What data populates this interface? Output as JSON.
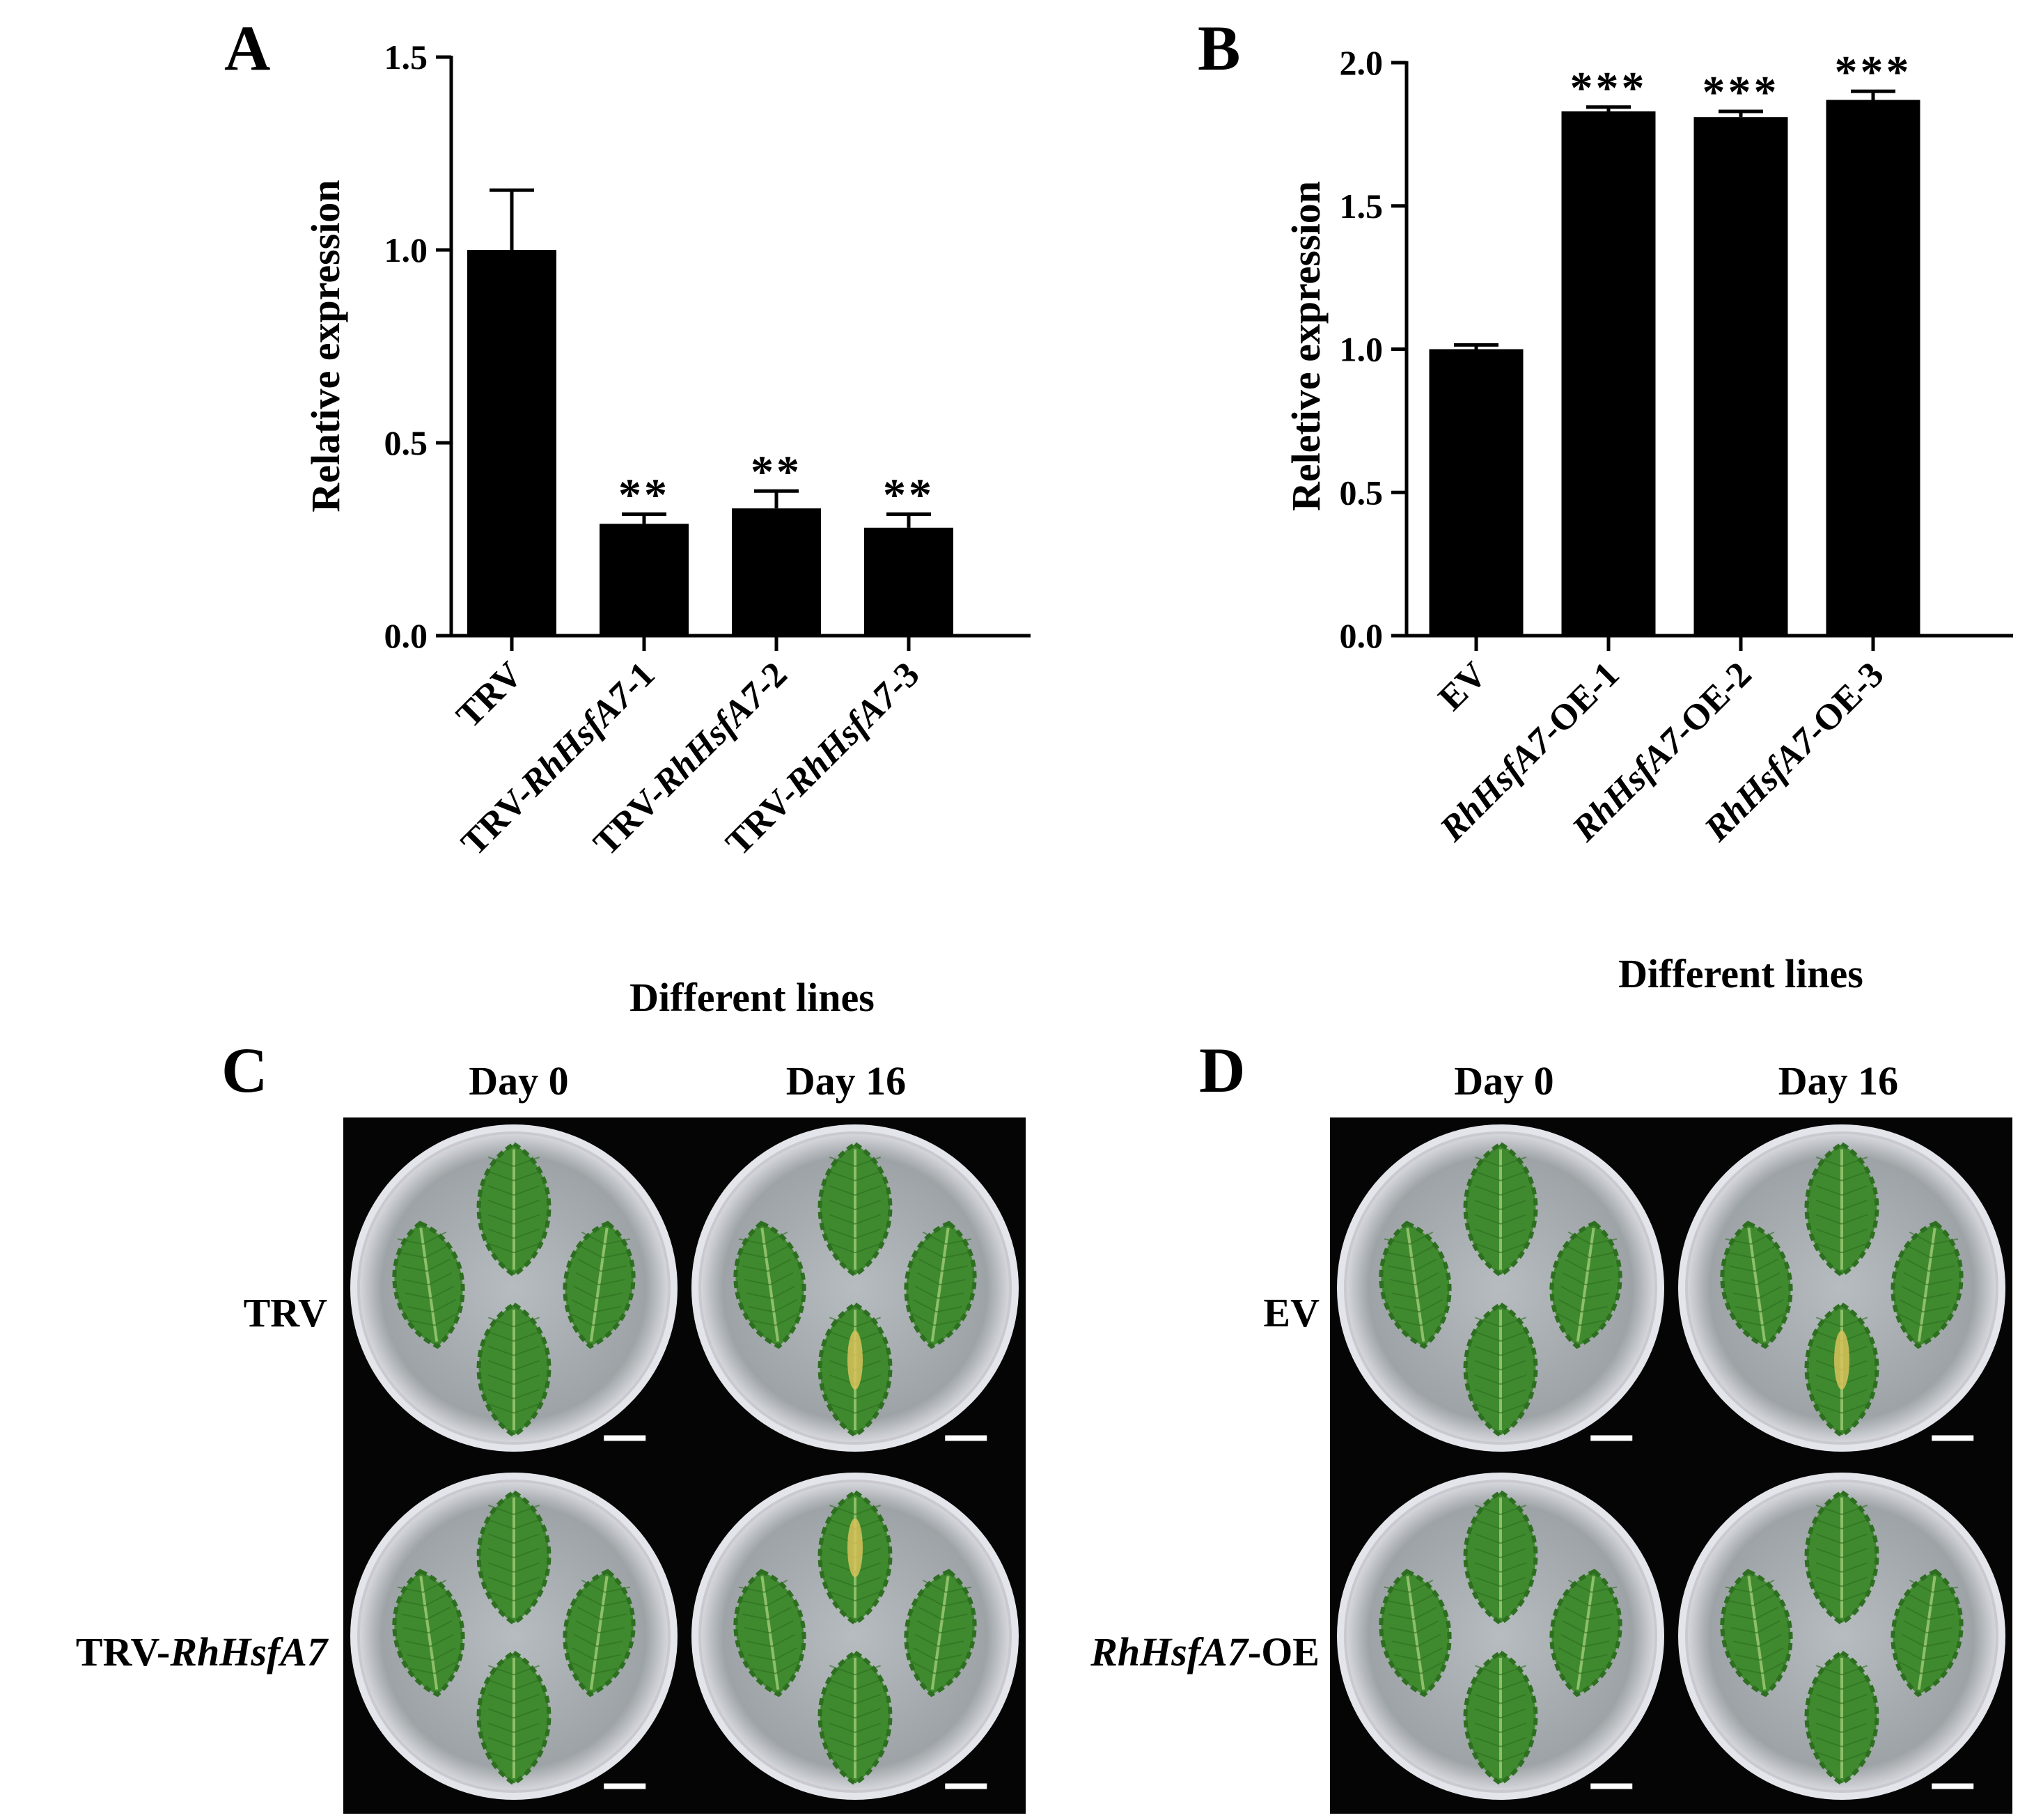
{
  "chart_data": [
    {
      "panel": "A",
      "type": "bar",
      "categories": [
        "TRV",
        "TRV-RhHsfA7-1",
        "TRV-RhHsfA7-2",
        "TRV-RhHsfA7-3"
      ],
      "categories_rich": [
        [
          {
            "t": "TRV",
            "i": false
          }
        ],
        [
          {
            "t": "TRV-",
            "i": false
          },
          {
            "t": "RhHsfA7",
            "i": true
          },
          {
            "t": "-1",
            "i": false
          }
        ],
        [
          {
            "t": "TRV-",
            "i": false
          },
          {
            "t": "RhHsfA7",
            "i": true
          },
          {
            "t": "-2",
            "i": false
          }
        ],
        [
          {
            "t": "TRV-",
            "i": false
          },
          {
            "t": "RhHsfA7",
            "i": true
          },
          {
            "t": "-3",
            "i": false
          }
        ]
      ],
      "values": [
        1.0,
        0.29,
        0.33,
        0.28
      ],
      "errors": [
        0.155,
        0.025,
        0.045,
        0.035
      ],
      "significance": [
        "",
        "**",
        "**",
        "**"
      ],
      "xlabel": "Different lines",
      "ylabel": "Relative expression",
      "ylim": [
        0,
        1.5
      ],
      "yticks": [
        "0.0",
        "0.5",
        "1.0",
        "1.5"
      ],
      "ytick_values": [
        0,
        0.5,
        1.0,
        1.5
      ],
      "bar_color": "#000000"
    },
    {
      "panel": "B",
      "type": "bar",
      "categories": [
        "EV",
        "RhHsfA7-OE-1",
        "RhHsfA7-OE-2",
        "RhHsfA7-OE-3"
      ],
      "categories_rich": [
        [
          {
            "t": "EV",
            "i": false
          }
        ],
        [
          {
            "t": "RhHsfA7",
            "i": true
          },
          {
            "t": "-OE-1",
            "i": false
          }
        ],
        [
          {
            "t": "RhHsfA7",
            "i": true
          },
          {
            "t": "-OE-2",
            "i": false
          }
        ],
        [
          {
            "t": "RhHsfA7",
            "i": true
          },
          {
            "t": "-OE-3",
            "i": false
          }
        ]
      ],
      "values": [
        1.0,
        1.83,
        1.81,
        1.87
      ],
      "errors": [
        0.015,
        0.015,
        0.02,
        0.03
      ],
      "significance": [
        "",
        "***",
        "***",
        "***"
      ],
      "xlabel": "Different lines",
      "ylabel": "Reletive expression",
      "ylim": [
        0,
        2.0
      ],
      "yticks": [
        "0.0",
        "0.5",
        "1.0",
        "1.5",
        "2.0"
      ],
      "ytick_values": [
        0,
        0.5,
        1.0,
        1.5,
        2.0
      ],
      "bar_color": "#000000"
    }
  ],
  "photo_panels": [
    {
      "panel": "C",
      "columns": [
        "Day 0",
        "Day 16"
      ],
      "rows": [
        [
          {
            "t": "TRV",
            "i": false
          }
        ],
        [
          {
            "t": "TRV-",
            "i": false
          },
          {
            "t": "RhHsfA7",
            "i": true
          }
        ]
      ],
      "yellowing": [
        [
          false,
          true
        ],
        [
          false,
          true
        ]
      ]
    },
    {
      "panel": "D",
      "columns": [
        "Day 0",
        "Day 16"
      ],
      "rows": [
        [
          {
            "t": "EV",
            "i": false
          }
        ],
        [
          {
            "t": "RhHsfA7",
            "i": true
          },
          {
            "t": "-OE",
            "i": false
          }
        ]
      ],
      "yellowing": [
        [
          false,
          true
        ],
        [
          false,
          false
        ]
      ]
    }
  ],
  "colors": {
    "photo_background": "#050505",
    "dish_rim": "#c9c9cf",
    "agar": "#9da3a6",
    "leaf": "#3f8a2e",
    "leaf_dark": "#2d6e20",
    "leaf_vein": "#8fbf6a",
    "yellow_lesion": "#d8c25a",
    "scale_bar": "#ffffff"
  }
}
